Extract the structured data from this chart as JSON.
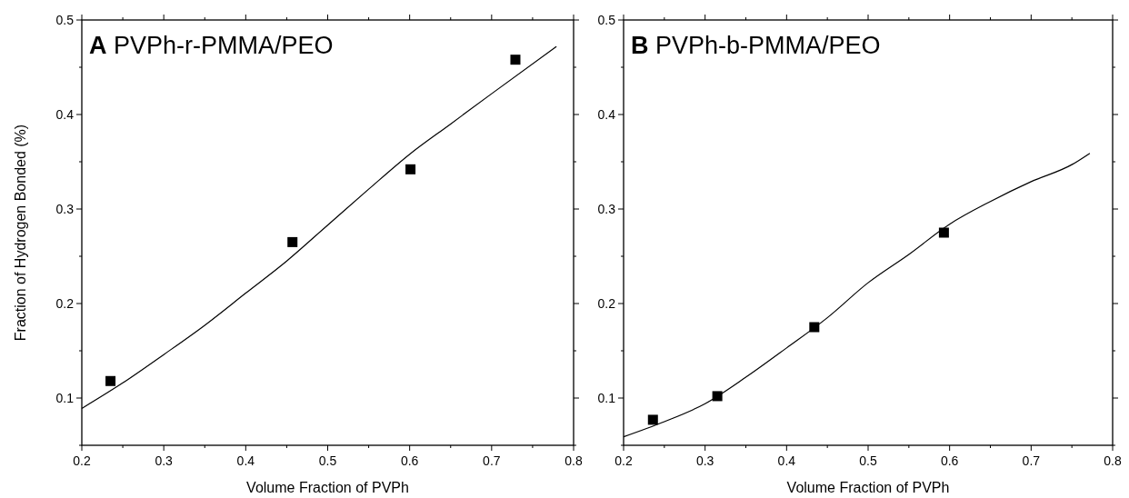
{
  "chart_data": [
    {
      "type": "scatter",
      "title": "A PVPh-r-PMMA/PEO",
      "xlabel": "Volume Fraction of PVPh",
      "ylabel": "Fraction of Hydrogen Bonded (%)",
      "xlim": [
        0.2,
        0.8
      ],
      "ylim": [
        0.05,
        0.5
      ],
      "xticks": [
        0.2,
        {
          "value": 0.25,
          "label": null
        },
        0.3,
        {
          "value": 0.35,
          "label": null
        },
        0.4,
        {
          "value": 0.45,
          "label": null
        },
        0.5,
        {
          "value": 0.55,
          "label": null
        },
        0.6,
        {
          "value": 0.65,
          "label": null
        },
        0.7,
        {
          "value": 0.75,
          "label": null
        },
        0.8
      ],
      "yticks": [
        {
          "value": 0.05,
          "label": null
        },
        0.1,
        {
          "value": 0.15,
          "label": null
        },
        0.2,
        {
          "value": 0.25,
          "label": null
        },
        0.3,
        {
          "value": 0.35,
          "label": null
        },
        0.4,
        {
          "value": 0.45,
          "label": null
        },
        0.5
      ],
      "grid": false,
      "series": [
        {
          "type": "scatter",
          "marker": "square",
          "color": "#000000",
          "x": [
            0.235,
            0.457,
            0.601,
            0.729
          ],
          "values": [
            0.118,
            0.265,
            0.342,
            0.458
          ]
        },
        {
          "type": "line",
          "marker": "none",
          "line_style": "solid",
          "color": "#000000",
          "x": [
            0.2,
            0.25,
            0.3,
            0.35,
            0.4,
            0.45,
            0.5,
            0.55,
            0.6,
            0.65,
            0.7,
            0.779
          ],
          "values": [
            0.089,
            0.116,
            0.146,
            0.177,
            0.211,
            0.245,
            0.283,
            0.321,
            0.358,
            0.39,
            0.422,
            0.472
          ]
        }
      ]
    },
    {
      "type": "scatter",
      "title": "B PVPh-b-PMMA/PEO",
      "xlabel": "Volume Fraction of PVPh",
      "xlim": [
        0.2,
        0.8
      ],
      "ylim": [
        0.05,
        0.5
      ],
      "xticks": [
        0.2,
        {
          "value": 0.25,
          "label": null
        },
        0.3,
        {
          "value": 0.35,
          "label": null
        },
        0.4,
        {
          "value": 0.45,
          "label": null
        },
        0.5,
        {
          "value": 0.55,
          "label": null
        },
        0.6,
        {
          "value": 0.65,
          "label": null
        },
        0.7,
        {
          "value": 0.75,
          "label": null
        },
        0.8
      ],
      "yticks": [
        {
          "value": 0.05,
          "label": null
        },
        0.1,
        {
          "value": 0.15,
          "label": null
        },
        0.2,
        {
          "value": 0.25,
          "label": null
        },
        0.3,
        {
          "value": 0.35,
          "label": null
        },
        0.4,
        {
          "value": 0.45,
          "label": null
        },
        0.5
      ],
      "grid": false,
      "series": [
        {
          "type": "scatter",
          "marker": "square",
          "color": "#000000",
          "x": [
            0.236,
            0.315,
            0.434,
            0.593
          ],
          "values": [
            0.077,
            0.102,
            0.175,
            0.275
          ]
        },
        {
          "type": "line",
          "marker": "none",
          "line_style": "solid",
          "color": "#000000",
          "x": [
            0.2,
            0.25,
            0.3,
            0.35,
            0.4,
            0.45,
            0.5,
            0.55,
            0.6,
            0.65,
            0.7,
            0.75,
            0.772
          ],
          "values": [
            0.059,
            0.075,
            0.094,
            0.122,
            0.153,
            0.185,
            0.222,
            0.252,
            0.284,
            0.308,
            0.329,
            0.347,
            0.359
          ]
        }
      ]
    }
  ]
}
